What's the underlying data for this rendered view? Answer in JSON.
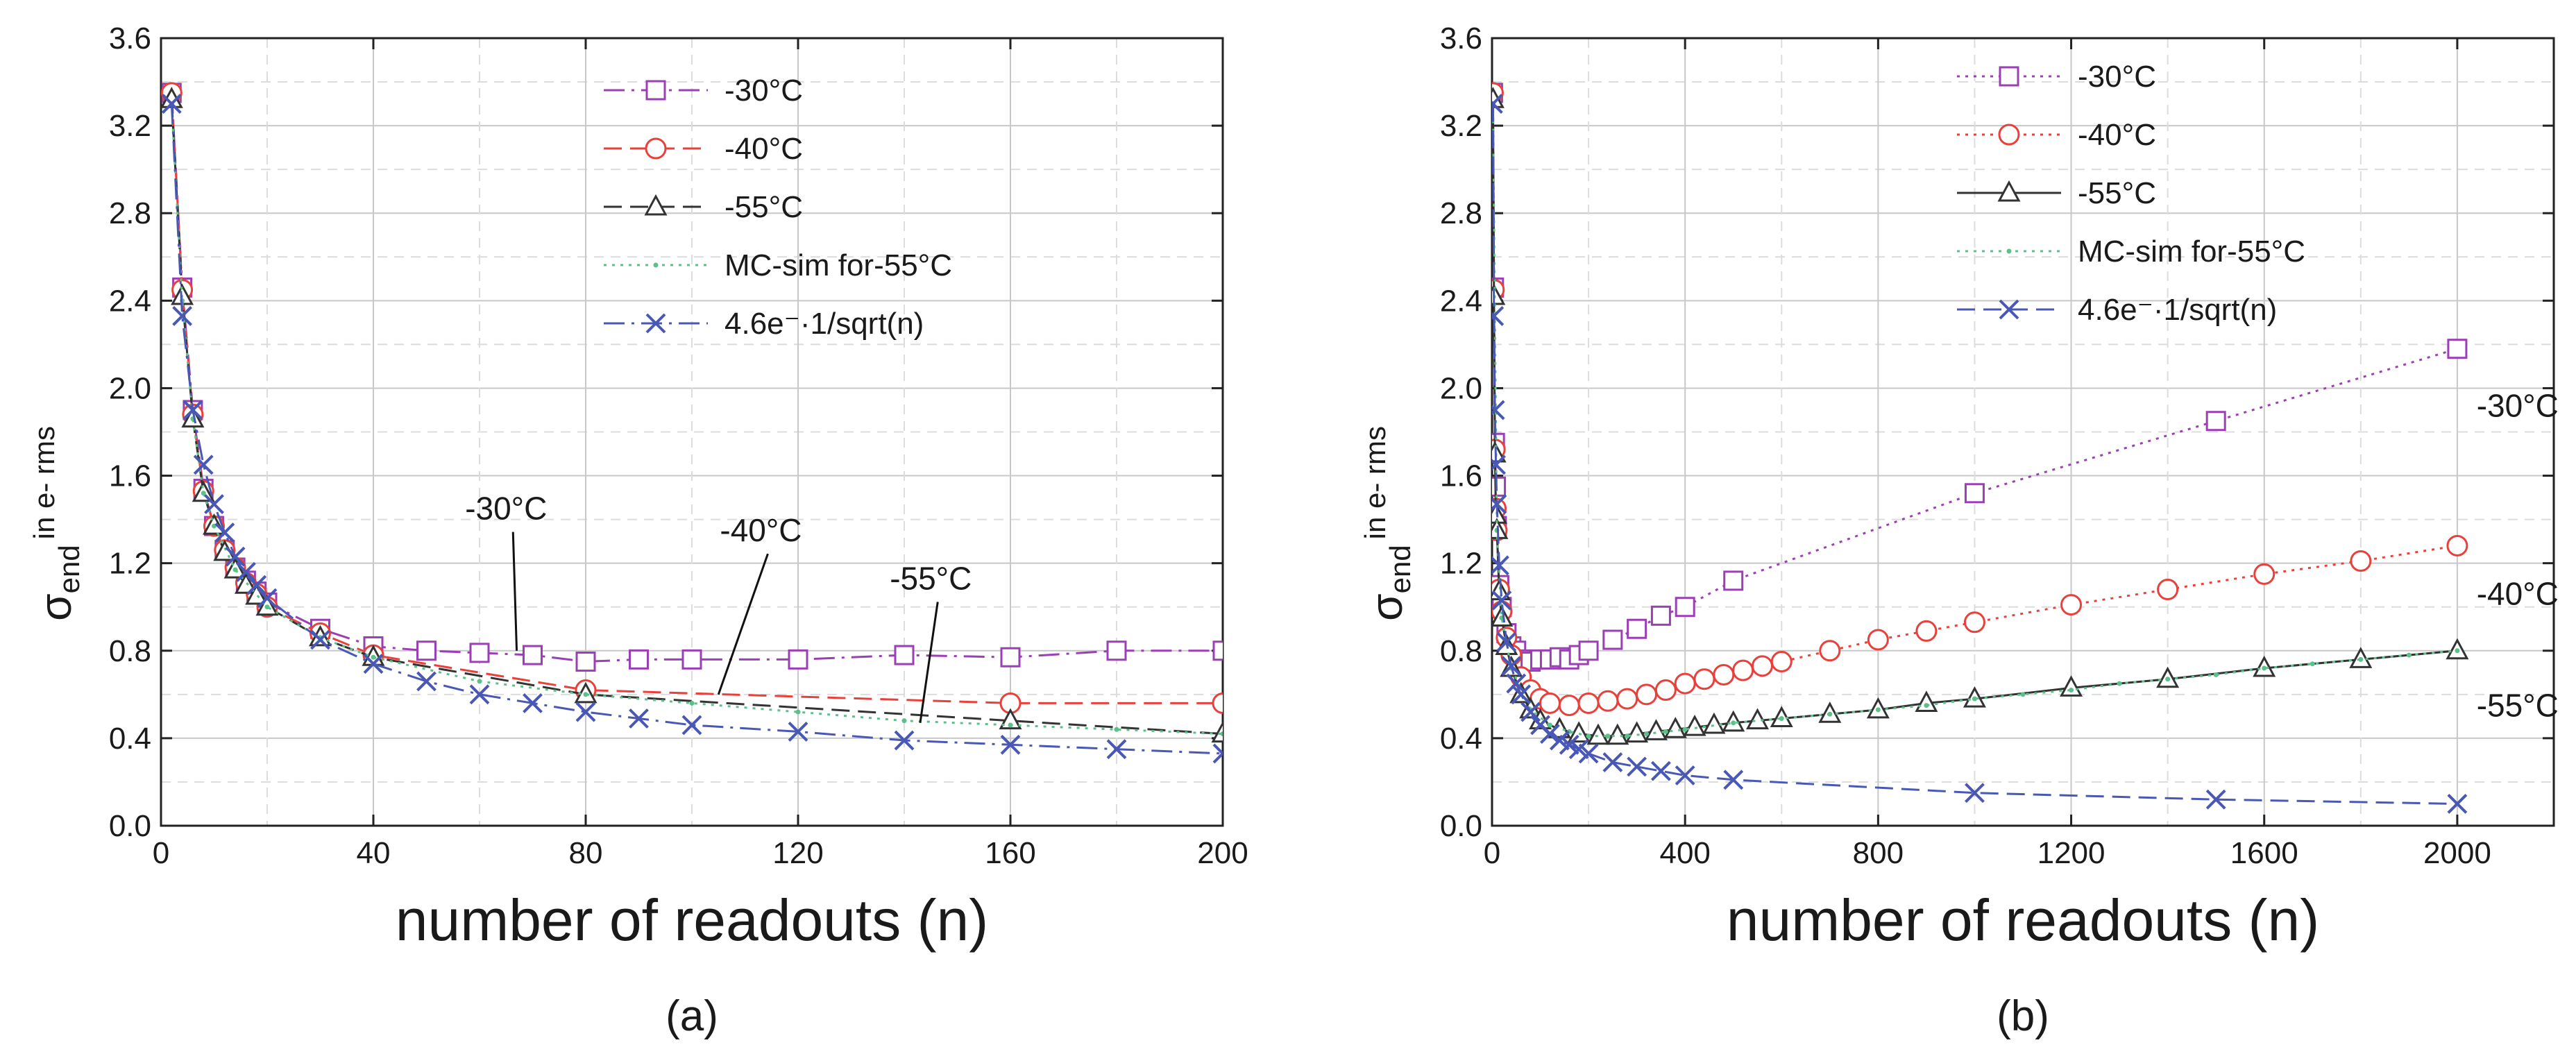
{
  "chart_data": [
    {
      "id": "a",
      "type": "line",
      "caption": "(a)",
      "xlabel": "number of readouts (n)",
      "ylabel": {
        "symbol": "σ",
        "subscript": "end",
        "unit": "in e- rms"
      },
      "xlim": [
        0,
        200
      ],
      "ylim": [
        0,
        3.6
      ],
      "xticks": [
        0,
        40,
        80,
        120,
        160,
        200
      ],
      "yticks": [
        0.0,
        0.4,
        0.8,
        1.2,
        1.6,
        2.0,
        2.4,
        2.8,
        3.2,
        3.6
      ],
      "ytick_labels": [
        "0.0",
        "0.4",
        "0.8",
        "1.2",
        "1.6",
        "2.0",
        "2.4",
        "2.8",
        "3.2",
        "3.6"
      ],
      "grid": true,
      "legend_position": "top-right",
      "series": [
        {
          "name": "-30°C",
          "color": "#9b3fb5",
          "marker": "square",
          "dash": "dashdot",
          "x": [
            2,
            4,
            6,
            8,
            10,
            12,
            14,
            16,
            18,
            20,
            30,
            40,
            50,
            60,
            70,
            80,
            90,
            100,
            120,
            140,
            160,
            180,
            200
          ],
          "y": [
            3.35,
            2.46,
            1.9,
            1.54,
            1.37,
            1.26,
            1.18,
            1.12,
            1.07,
            1.02,
            0.9,
            0.82,
            0.8,
            0.79,
            0.78,
            0.75,
            0.76,
            0.76,
            0.76,
            0.78,
            0.77,
            0.8,
            0.8
          ]
        },
        {
          "name": "-40°C",
          "color": "#e8413c",
          "marker": "circle",
          "dash": "dash",
          "x": [
            2,
            4,
            6,
            8,
            10,
            12,
            14,
            16,
            18,
            20,
            30,
            40,
            80,
            160,
            200
          ],
          "y": [
            3.35,
            2.45,
            1.88,
            1.53,
            1.37,
            1.26,
            1.18,
            1.11,
            1.06,
            1.0,
            0.88,
            0.78,
            0.62,
            0.56,
            0.56
          ]
        },
        {
          "name": "-55°C",
          "color": "#333333",
          "marker": "triangle",
          "dash": "dash",
          "x": [
            2,
            4,
            6,
            8,
            10,
            12,
            14,
            16,
            18,
            20,
            30,
            40,
            80,
            160,
            200
          ],
          "y": [
            3.32,
            2.42,
            1.86,
            1.52,
            1.37,
            1.25,
            1.17,
            1.1,
            1.05,
            1.0,
            0.86,
            0.77,
            0.6,
            0.48,
            0.42
          ]
        },
        {
          "name": "MC-sim for-55°C",
          "color": "#5cc08a",
          "marker": "dot",
          "dash": "dot",
          "x": [
            2,
            4,
            6,
            8,
            10,
            14,
            20,
            30,
            40,
            60,
            80,
            100,
            120,
            140,
            160,
            180,
            200
          ],
          "y": [
            3.3,
            2.4,
            1.86,
            1.52,
            1.37,
            1.17,
            1.0,
            0.86,
            0.77,
            0.66,
            0.6,
            0.56,
            0.52,
            0.48,
            0.46,
            0.44,
            0.42
          ]
        },
        {
          "name": "4.6e⁻·1/sqrt(n)",
          "color": "#4a58b5",
          "marker": "x",
          "dash": "dashdot",
          "x": [
            2,
            4,
            6,
            8,
            10,
            12,
            14,
            16,
            18,
            20,
            30,
            40,
            50,
            60,
            70,
            80,
            90,
            100,
            120,
            140,
            160,
            180,
            200
          ],
          "y": [
            3.3,
            2.33,
            1.9,
            1.65,
            1.47,
            1.34,
            1.23,
            1.16,
            1.1,
            1.04,
            0.85,
            0.74,
            0.66,
            0.6,
            0.56,
            0.52,
            0.49,
            0.46,
            0.43,
            0.39,
            0.37,
            0.35,
            0.33
          ]
        }
      ],
      "annotations": [
        {
          "text": "-30°C",
          "x": 65,
          "y": 1.4,
          "point_x": 67,
          "point_y": 0.8
        },
        {
          "text": "-40°C",
          "x": 113,
          "y": 1.3,
          "point_x": 105,
          "point_y": 0.6
        },
        {
          "text": "-55°C",
          "x": 145,
          "y": 1.08,
          "point_x": 143,
          "point_y": 0.47
        }
      ]
    },
    {
      "id": "b",
      "type": "line",
      "caption": "(b)",
      "xlabel": "number of readouts (n)",
      "ylabel": {
        "symbol": "σ",
        "subscript": "end",
        "unit": "in e- rms"
      },
      "xlim": [
        0,
        2200
      ],
      "ylim": [
        0,
        3.6
      ],
      "xticks": [
        0,
        400,
        800,
        1200,
        1600,
        2000
      ],
      "yticks": [
        0.0,
        0.4,
        0.8,
        1.2,
        1.6,
        2.0,
        2.4,
        2.8,
        3.2,
        3.6
      ],
      "ytick_labels": [
        "0.0",
        "0.4",
        "0.8",
        "1.2",
        "1.6",
        "2.0",
        "2.4",
        "2.8",
        "3.2",
        "3.6"
      ],
      "grid": true,
      "legend_position": "top-left",
      "series": [
        {
          "name": "-30°C",
          "color": "#9b3fb5",
          "marker": "square",
          "dash": "dot",
          "x": [
            2,
            4,
            6,
            8,
            10,
            15,
            20,
            30,
            40,
            50,
            60,
            80,
            100,
            120,
            140,
            160,
            180,
            200,
            250,
            300,
            350,
            400,
            500,
            1000,
            1500,
            2000
          ],
          "y": [
            3.35,
            2.46,
            1.75,
            1.55,
            1.37,
            1.1,
            1.0,
            0.88,
            0.82,
            0.8,
            0.76,
            0.75,
            0.76,
            0.76,
            0.77,
            0.76,
            0.78,
            0.8,
            0.85,
            0.9,
            0.96,
            1.0,
            1.12,
            1.52,
            1.85,
            2.18
          ]
        },
        {
          "name": "-40°C",
          "color": "#e8413c",
          "marker": "circle",
          "dash": "dot",
          "x": [
            2,
            4,
            6,
            8,
            10,
            15,
            20,
            30,
            40,
            60,
            80,
            100,
            120,
            160,
            200,
            240,
            280,
            320,
            360,
            400,
            440,
            480,
            520,
            560,
            600,
            700,
            800,
            900,
            1000,
            1200,
            1400,
            1600,
            1800,
            2000
          ],
          "y": [
            3.35,
            2.45,
            1.72,
            1.45,
            1.35,
            1.08,
            0.98,
            0.86,
            0.78,
            0.68,
            0.62,
            0.58,
            0.56,
            0.55,
            0.56,
            0.57,
            0.58,
            0.6,
            0.62,
            0.65,
            0.67,
            0.69,
            0.71,
            0.73,
            0.75,
            0.8,
            0.85,
            0.89,
            0.93,
            1.01,
            1.08,
            1.15,
            1.21,
            1.28
          ]
        },
        {
          "name": "-55°C",
          "color": "#333333",
          "marker": "triangle",
          "dash": "solid",
          "x": [
            2,
            4,
            6,
            8,
            10,
            15,
            20,
            30,
            40,
            60,
            80,
            100,
            140,
            180,
            220,
            260,
            300,
            340,
            380,
            420,
            460,
            500,
            550,
            600,
            700,
            800,
            900,
            1000,
            1200,
            1400,
            1600,
            1800,
            2000
          ],
          "y": [
            3.32,
            2.42,
            1.7,
            1.42,
            1.35,
            1.07,
            0.95,
            0.82,
            0.72,
            0.6,
            0.53,
            0.48,
            0.44,
            0.42,
            0.41,
            0.41,
            0.42,
            0.43,
            0.44,
            0.45,
            0.46,
            0.47,
            0.48,
            0.49,
            0.51,
            0.53,
            0.56,
            0.58,
            0.63,
            0.67,
            0.72,
            0.76,
            0.8
          ]
        },
        {
          "name": "MC-sim for-55°C",
          "color": "#5cc08a",
          "marker": "dot",
          "dash": "dot",
          "x": [
            2,
            10,
            20,
            40,
            80,
            120,
            160,
            200,
            240,
            280,
            320,
            360,
            400,
            500,
            600,
            700,
            800,
            900,
            1000,
            1100,
            1200,
            1300,
            1400,
            1500,
            1600,
            1700,
            1800,
            1900,
            2000
          ],
          "y": [
            3.3,
            1.35,
            0.95,
            0.72,
            0.53,
            0.46,
            0.43,
            0.41,
            0.41,
            0.41,
            0.42,
            0.43,
            0.44,
            0.47,
            0.49,
            0.51,
            0.53,
            0.55,
            0.58,
            0.6,
            0.62,
            0.65,
            0.67,
            0.69,
            0.72,
            0.74,
            0.76,
            0.78,
            0.8
          ]
        },
        {
          "name": "4.6e⁻·1/sqrt(n)",
          "color": "#4a58b5",
          "marker": "x",
          "dash": "dash",
          "x": [
            2,
            4,
            6,
            8,
            10,
            15,
            20,
            30,
            40,
            50,
            60,
            80,
            100,
            120,
            140,
            160,
            180,
            200,
            250,
            300,
            350,
            400,
            500,
            1000,
            1500,
            2000
          ],
          "y": [
            3.3,
            2.33,
            1.9,
            1.65,
            1.47,
            1.19,
            1.03,
            0.84,
            0.73,
            0.65,
            0.6,
            0.52,
            0.46,
            0.42,
            0.39,
            0.37,
            0.35,
            0.33,
            0.29,
            0.27,
            0.25,
            0.23,
            0.21,
            0.15,
            0.12,
            0.1
          ]
        }
      ],
      "annotations": [
        {
          "text": "-30°C",
          "x": 2040,
          "y": 1.87
        },
        {
          "text": "-40°C",
          "x": 2040,
          "y": 1.01
        },
        {
          "text": "-55°C",
          "x": 2040,
          "y": 0.5
        }
      ]
    }
  ]
}
